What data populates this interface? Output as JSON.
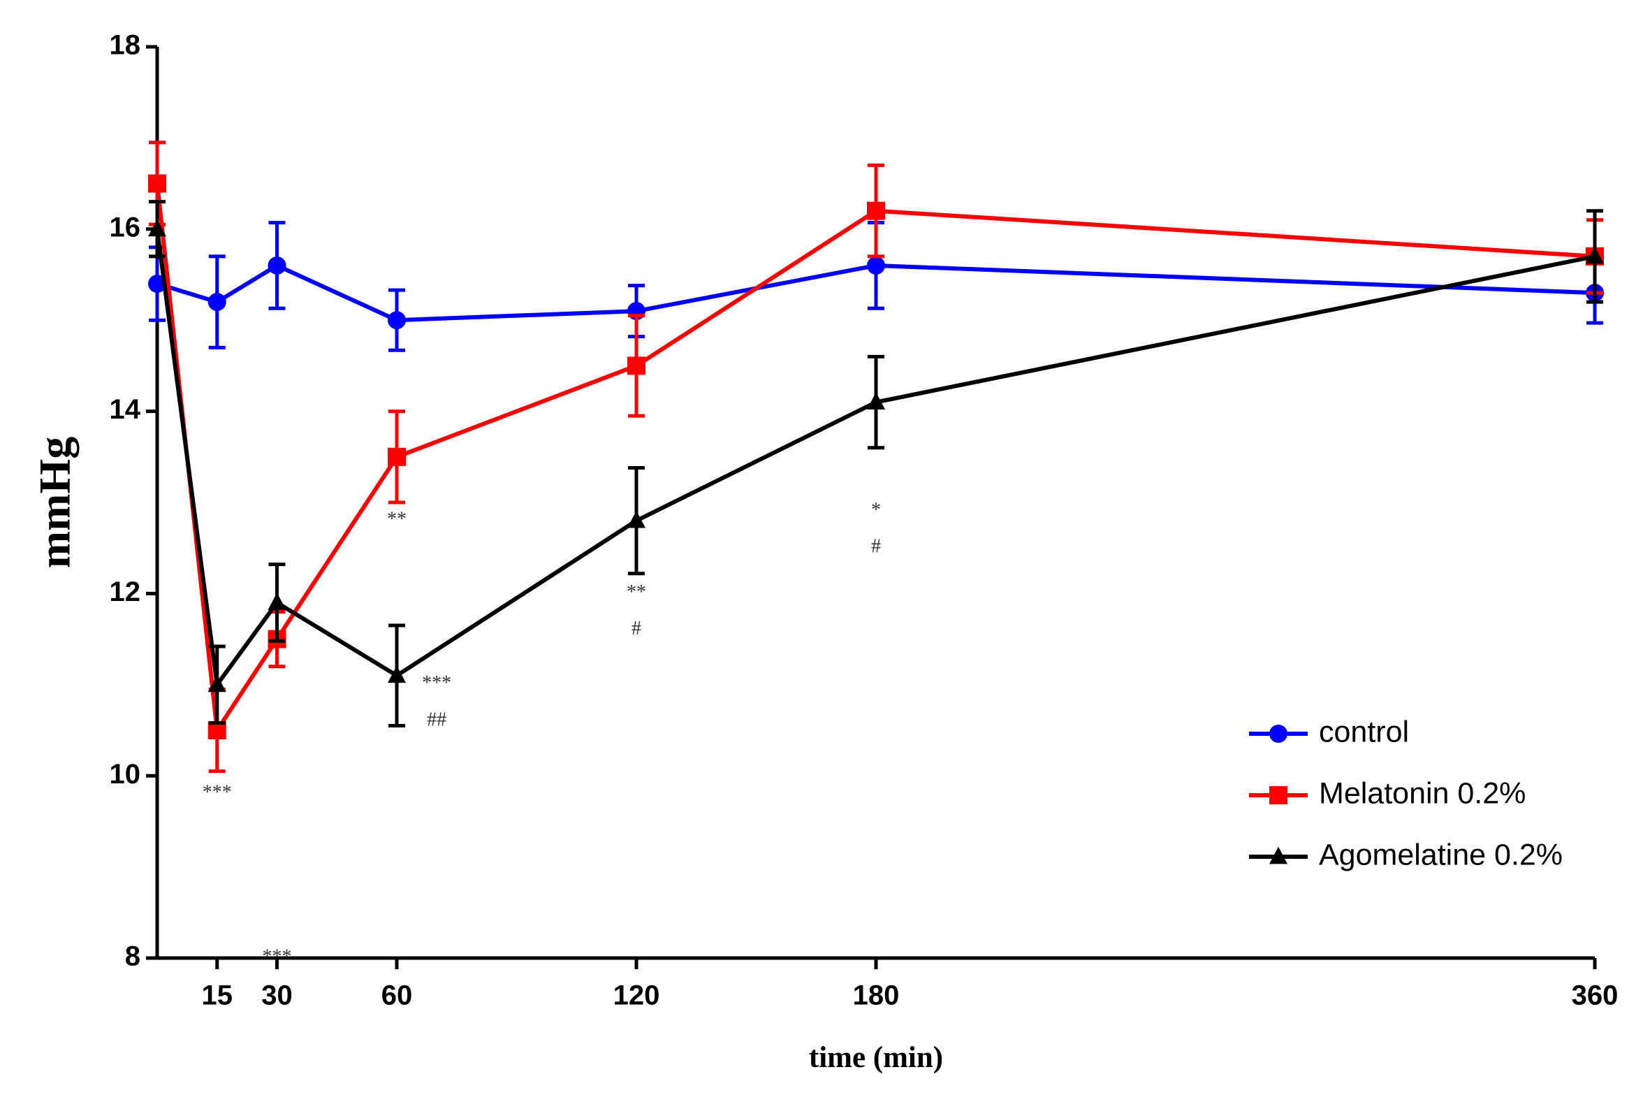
{
  "chart_data": {
    "type": "line",
    "x_label": "time (min)",
    "y_label": "mmHg",
    "x": [
      0,
      15,
      30,
      60,
      120,
      180,
      360
    ],
    "xlim": [
      0,
      360
    ],
    "xticks": [
      15,
      30,
      60,
      120,
      180,
      360
    ],
    "ylim": [
      8,
      18
    ],
    "yticks": [
      8,
      10,
      12,
      14,
      16,
      18
    ],
    "legend": "lower right",
    "series": [
      {
        "name": "control",
        "color": "#0000ff",
        "marker": "circle",
        "values": [
          15.4,
          15.2,
          15.6,
          15.0,
          15.1,
          15.6,
          15.3
        ],
        "errors": [
          0.4,
          0.5,
          0.47,
          0.33,
          0.28,
          0.47,
          0.33
        ]
      },
      {
        "name": "Melatonin 0.2%",
        "color": "#ff0000",
        "marker": "square",
        "values": [
          16.5,
          10.5,
          11.5,
          13.5,
          14.5,
          16.2,
          15.7
        ],
        "errors": [
          0.45,
          0.45,
          0.3,
          0.5,
          0.55,
          0.5,
          0.4
        ]
      },
      {
        "name": "Agomelatine 0.2%",
        "color": "#000000",
        "marker": "triangle",
        "values": [
          16.0,
          11.0,
          11.9,
          11.1,
          12.8,
          14.1,
          15.7
        ],
        "errors": [
          0.3,
          0.42,
          0.42,
          0.55,
          0.58,
          0.5,
          0.5
        ]
      }
    ],
    "annotations": [
      {
        "text": "***",
        "x": 15,
        "y": 9.8
      },
      {
        "text": "***",
        "x": 30,
        "y": 8.0
      },
      {
        "text": "**",
        "x": 60,
        "y": 12.8
      },
      {
        "text": "***",
        "x": 70,
        "y": 11.0
      },
      {
        "text": "##",
        "x": 70,
        "y": 10.6
      },
      {
        "text": "**",
        "x": 120,
        "y": 12.0
      },
      {
        "text": "#",
        "x": 120,
        "y": 11.6
      },
      {
        "text": "*",
        "x": 180,
        "y": 12.9
      },
      {
        "text": "#",
        "x": 180,
        "y": 12.5
      }
    ]
  }
}
